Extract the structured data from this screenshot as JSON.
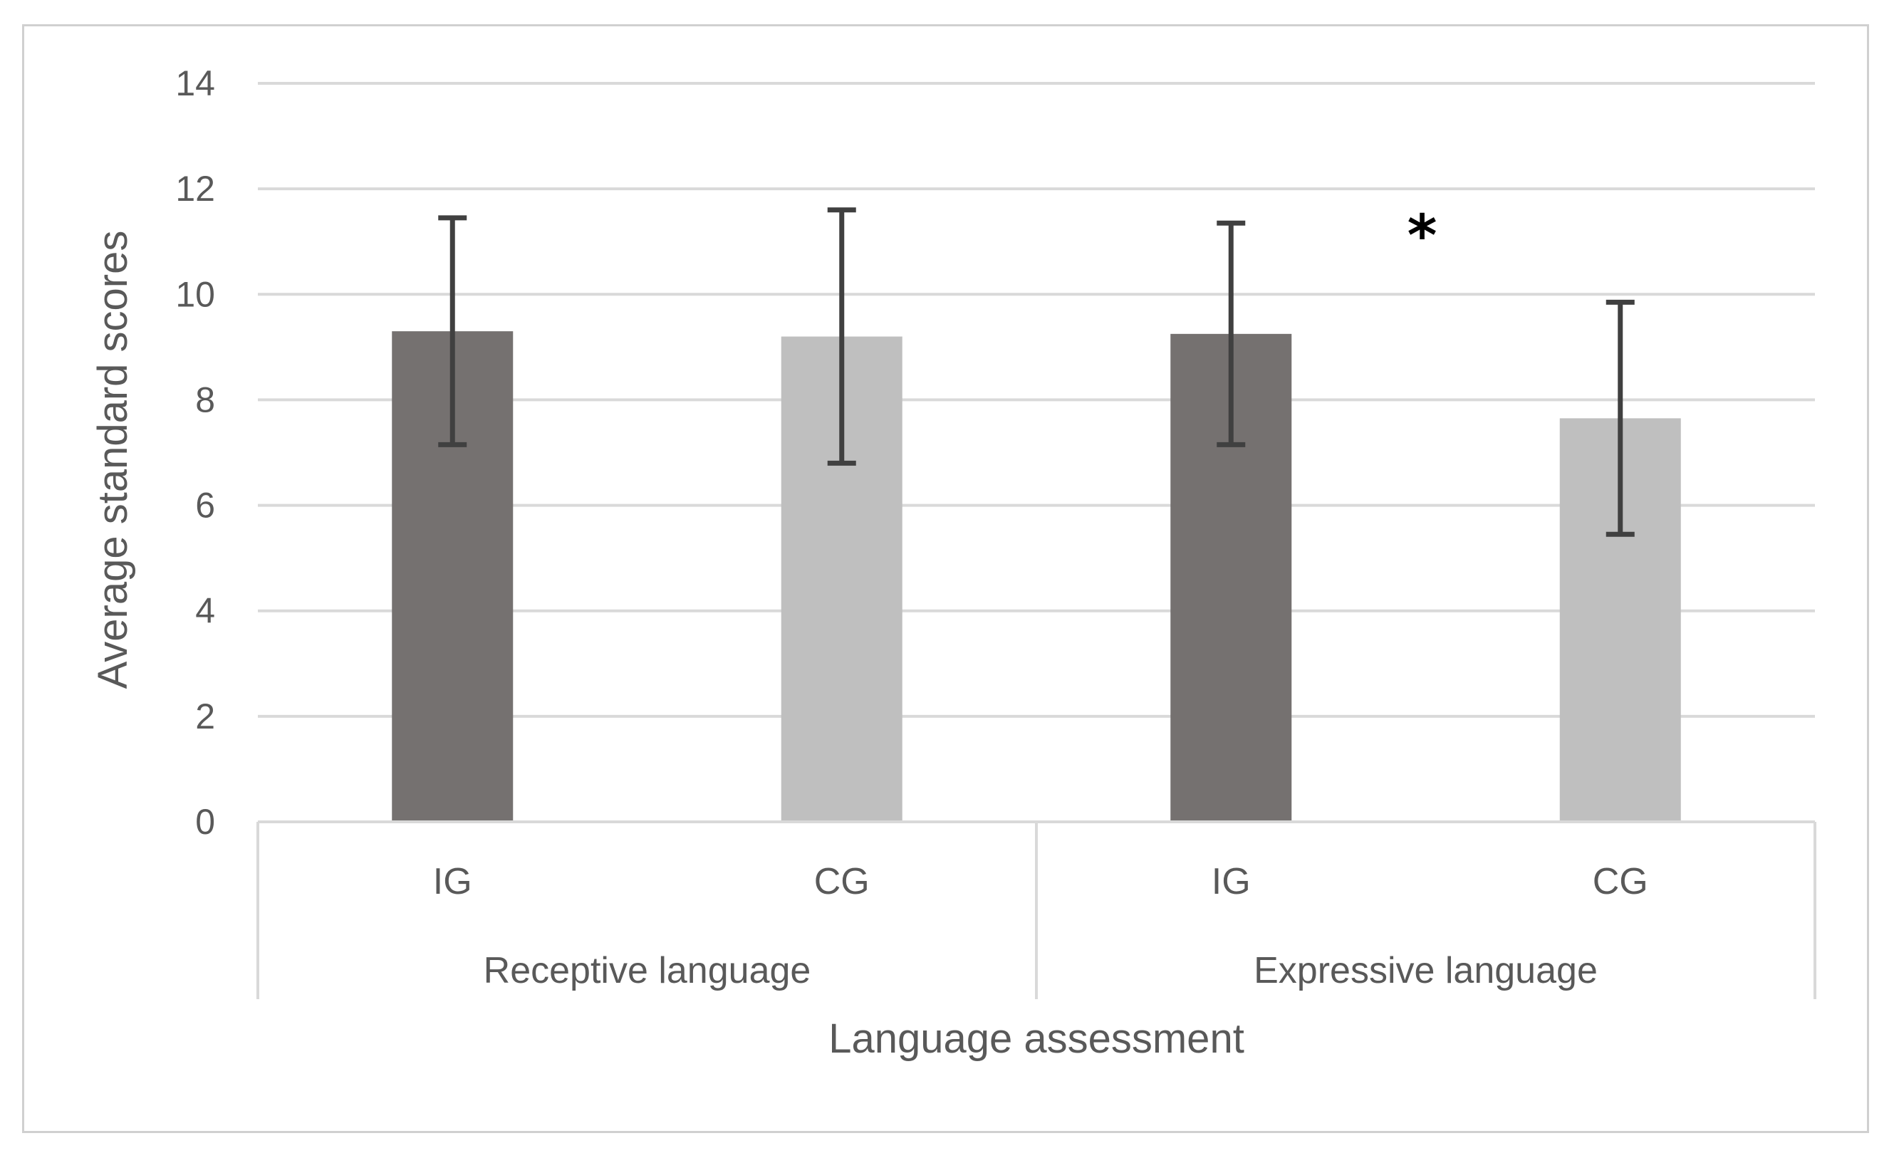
{
  "chart_data": {
    "type": "bar",
    "title": "",
    "xlabel": "Language assessment",
    "ylabel": "Average standard scores",
    "ylim": [
      0,
      14
    ],
    "yticks": [
      0,
      2,
      4,
      6,
      8,
      10,
      12,
      14
    ],
    "ytick_labels": [
      "0",
      "2",
      "4",
      "6",
      "8",
      "10",
      "12",
      "14"
    ],
    "grid": true,
    "legend": "none",
    "groups": [
      {
        "label": "Receptive language",
        "bars": [
          {
            "label": "IG",
            "value": 9.3,
            "error": 2.15,
            "color": "#757170"
          },
          {
            "label": "CG",
            "value": 9.2,
            "error": 2.4,
            "color": "#bfbfbf"
          }
        ]
      },
      {
        "label": "Expressive language",
        "bars": [
          {
            "label": "IG",
            "value": 9.25,
            "error": 2.1,
            "color": "#757170"
          },
          {
            "label": "CG",
            "value": 7.65,
            "error": 2.2,
            "color": "#bfbfbf"
          }
        ]
      }
    ],
    "annotations": [
      {
        "text": "*",
        "group": 1,
        "y": 11.35
      }
    ]
  }
}
